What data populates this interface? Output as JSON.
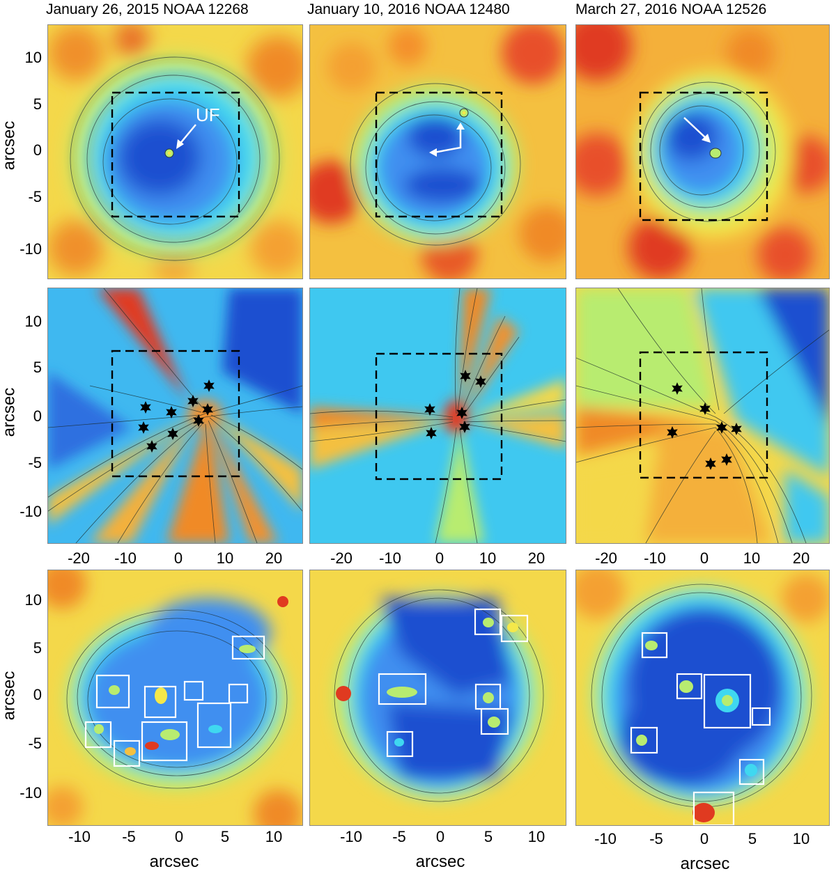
{
  "columns": [
    {
      "title": "January 26, 2015 NOAA 12268"
    },
    {
      "title": "January 10, 2016 NOAA 12480"
    },
    {
      "title": "March 27, 2016 NOAA 12526"
    }
  ],
  "axis": {
    "y_label": "arcsec",
    "x_label": "arcsec",
    "row_ticks_y": [
      "10",
      "5",
      "0",
      "-5",
      "-10"
    ],
    "mid_ticks_x": [
      "-20",
      "-10",
      "0",
      "10",
      "20"
    ],
    "bottom_ticks_x": [
      "-10",
      "-5",
      "0",
      "5",
      "10"
    ]
  },
  "annotation": {
    "uf_label": "UF"
  },
  "colors": {
    "deep_blue": "#1f4fd0",
    "blue": "#3f8ff0",
    "cyan": "#3fd8f0",
    "green": "#b8ec70",
    "yellow": "#f4e84a",
    "orange": "#f4902a",
    "red": "#e03a20",
    "box": "#ffffff",
    "dashed_box": "#000000"
  }
}
